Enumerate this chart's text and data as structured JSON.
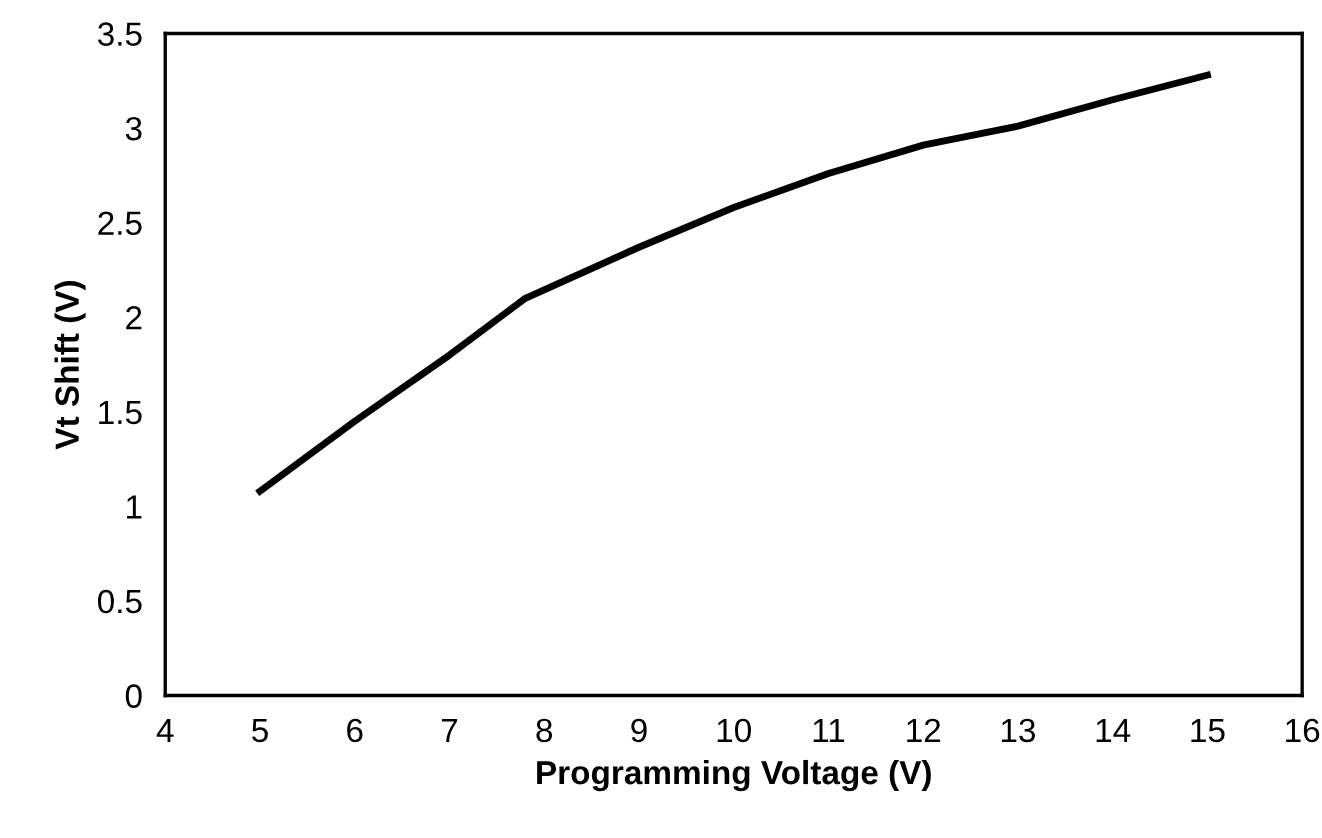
{
  "chart_data": {
    "type": "line",
    "xlabel": "Programming Voltage (V)",
    "ylabel": "Vt Shift (V)",
    "x": [
      5,
      6,
      7,
      7.8,
      9,
      10,
      11,
      12,
      12.5,
      13,
      14,
      15
    ],
    "series": [
      {
        "color": "#000000",
        "values": [
          1.08,
          1.45,
          1.8,
          2.1,
          2.37,
          2.58,
          2.76,
          2.91,
          2.96,
          3.01,
          3.15,
          3.28
        ]
      }
    ],
    "xlim": [
      4,
      16
    ],
    "xticks": [
      4,
      5,
      6,
      7,
      8,
      9,
      10,
      11,
      12,
      13,
      14,
      15,
      16
    ],
    "ylim": [
      0,
      3.5
    ],
    "yticks": [
      0,
      0.5,
      1,
      1.5,
      2,
      2.5,
      3,
      3.5
    ],
    "grid": false,
    "legend": false,
    "marker": "none",
    "line_style": "solid"
  }
}
